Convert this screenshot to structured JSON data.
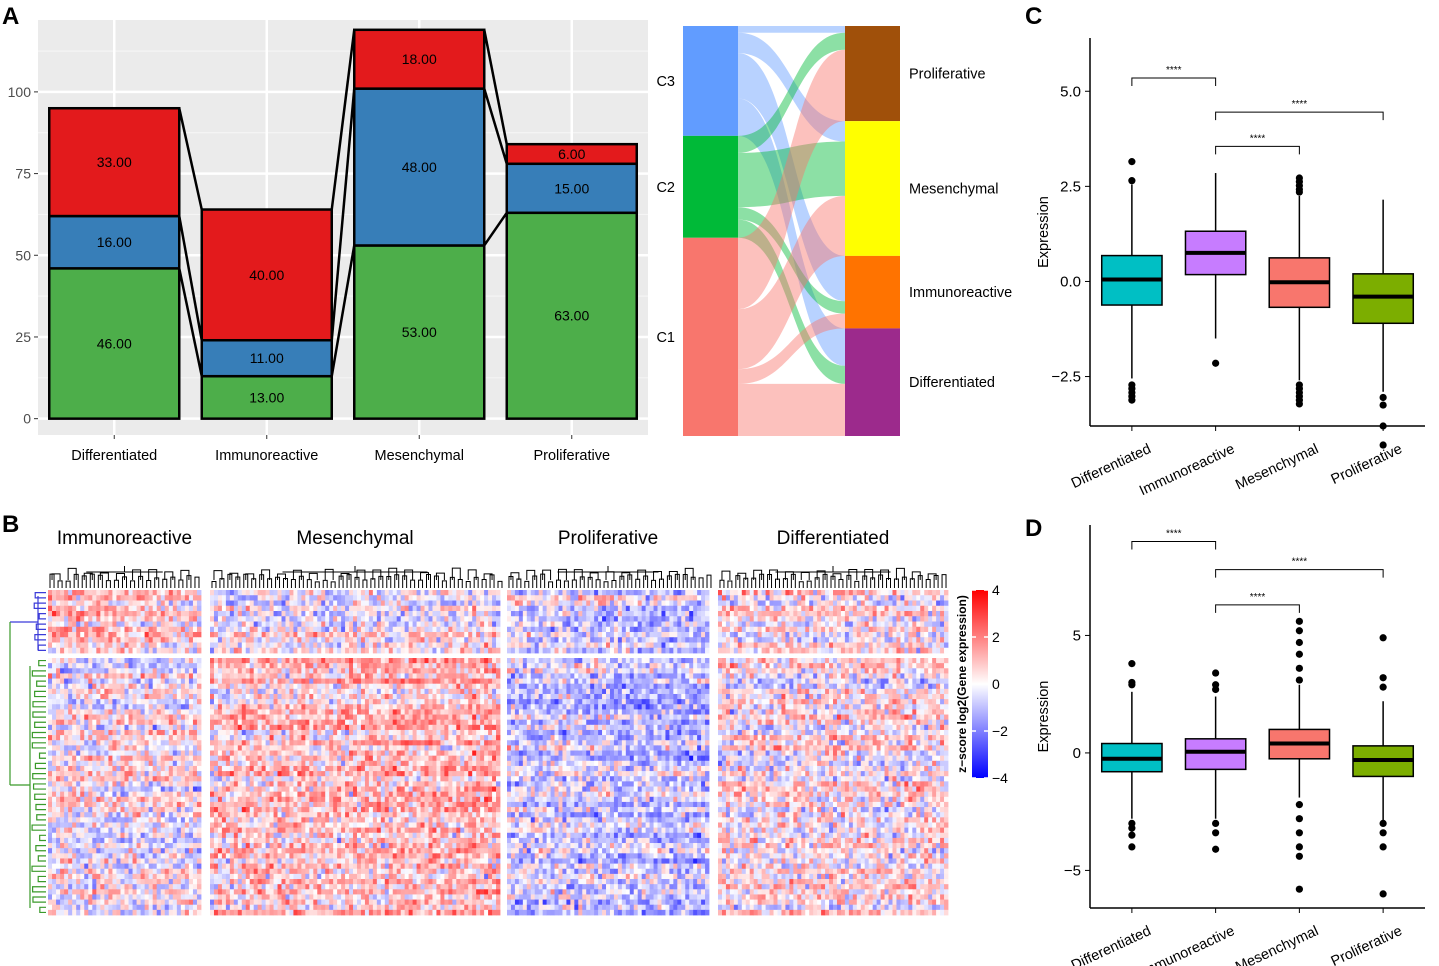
{
  "panels": {
    "a": "A",
    "b": "B",
    "c": "C",
    "d": "D"
  },
  "colors": {
    "green": "#4dae4a",
    "blue": "#377eb8",
    "red": "#e31a1c",
    "grid_bg": "#ebebeb",
    "sankey_c3": "#619cff",
    "sankey_c2": "#00ba38",
    "sankey_c1": "#f8766d",
    "sub_proliferative": "#a0500a",
    "sub_mesenchymal": "#ffff00",
    "sub_immunoreactive": "#ff7300",
    "sub_differentiated": "#9c2a8c",
    "box_differentiated": "#00bfc4",
    "box_immunoreactive": "#c77cff",
    "box_mesenchymal": "#f8766d",
    "box_proliferative": "#7cae00",
    "heat_red": "#ff0000",
    "heat_blue": "#0000ff"
  },
  "chart_data": [
    {
      "id": "A-bar",
      "type": "bar",
      "stacked": true,
      "categories": [
        "Differentiated",
        "Immunoreactive",
        "Mesenchymal",
        "Proliferative"
      ],
      "series": [
        {
          "name": "C1",
          "color": "#4dae4a",
          "values": [
            46,
            13,
            53,
            63
          ],
          "labels": [
            "46.00",
            "13.00",
            "53.00",
            "63.00"
          ]
        },
        {
          "name": "C2",
          "color": "#377eb8",
          "values": [
            16,
            11,
            48,
            15
          ],
          "labels": [
            "16.00",
            "11.00",
            "48.00",
            "15.00"
          ]
        },
        {
          "name": "C3",
          "color": "#e31a1c",
          "values": [
            33,
            40,
            18,
            6
          ],
          "labels": [
            "33.00",
            "40.00",
            "18.00",
            "6.00"
          ]
        }
      ],
      "yticks": [
        0,
        25,
        50,
        75,
        100
      ],
      "ytick_labels": [
        "0",
        "25",
        "50",
        "75",
        "100"
      ],
      "ylim": [
        -5,
        122
      ]
    },
    {
      "id": "A-sankey",
      "type": "sankey",
      "left_nodes": [
        {
          "name": "C3",
          "label": "C3",
          "value": 97
        },
        {
          "name": "C2",
          "label": "C2",
          "value": 90
        },
        {
          "name": "C1",
          "label": "C1",
          "value": 175
        }
      ],
      "right_nodes": [
        {
          "name": "Proliferative",
          "label": "Proliferative",
          "value": 84
        },
        {
          "name": "Mesenchymal",
          "label": "Mesenchymal",
          "value": 119
        },
        {
          "name": "Immunoreactive",
          "label": "Immunoreactive",
          "value": 64
        },
        {
          "name": "Differentiated",
          "label": "Differentiated",
          "value": 95
        }
      ],
      "flows": [
        {
          "from": "C3",
          "to": "Proliferative",
          "value": 6
        },
        {
          "from": "C3",
          "to": "Mesenchymal",
          "value": 18
        },
        {
          "from": "C3",
          "to": "Immunoreactive",
          "value": 40
        },
        {
          "from": "C3",
          "to": "Differentiated",
          "value": 33
        },
        {
          "from": "C2",
          "to": "Proliferative",
          "value": 15
        },
        {
          "from": "C2",
          "to": "Mesenchymal",
          "value": 48
        },
        {
          "from": "C2",
          "to": "Immunoreactive",
          "value": 11
        },
        {
          "from": "C2",
          "to": "Differentiated",
          "value": 16
        },
        {
          "from": "C1",
          "to": "Proliferative",
          "value": 63
        },
        {
          "from": "C1",
          "to": "Mesenchymal",
          "value": 53
        },
        {
          "from": "C1",
          "to": "Immunoreactive",
          "value": 13
        },
        {
          "from": "C1",
          "to": "Differentiated",
          "value": 46
        }
      ]
    },
    {
      "id": "C-box",
      "type": "box",
      "categories": [
        "Differentiated",
        "Immunoreactive",
        "Mesenchymal",
        "Proliferative"
      ],
      "ylabel": "Expression",
      "ylim": [
        -3.8,
        6.4
      ],
      "yticks": [
        -2.5,
        0,
        2.5,
        5
      ],
      "ytick_labels": [
        "−2.5",
        "0.0",
        "2.5",
        "5.0"
      ],
      "boxes": [
        {
          "name": "Differentiated",
          "q1": -0.62,
          "median": 0.05,
          "q3": 0.68,
          "wlo": -2.55,
          "whi": 2.55,
          "outliers": [
            3.15,
            2.65,
            -2.72,
            -2.82,
            -2.92,
            -3.02,
            -3.12
          ]
        },
        {
          "name": "Immunoreactive",
          "q1": 0.18,
          "median": 0.75,
          "q3": 1.32,
          "wlo": -1.5,
          "whi": 2.85,
          "outliers": [
            -2.15
          ]
        },
        {
          "name": "Mesenchymal",
          "q1": -0.68,
          "median": -0.02,
          "q3": 0.62,
          "wlo": -2.6,
          "whi": 2.25,
          "outliers": [
            2.72,
            2.62,
            2.52,
            2.42,
            2.35,
            -2.72,
            -2.82,
            -2.92,
            -3.02,
            -3.12,
            -3.22
          ]
        },
        {
          "name": "Proliferative",
          "q1": -1.1,
          "median": -0.4,
          "q3": 0.2,
          "wlo": -2.9,
          "whi": 2.15,
          "outliers": [
            -3.05,
            -3.25,
            -3.8,
            -4.3
          ]
        }
      ],
      "comparisons": [
        {
          "from": "Differentiated",
          "to": "Immunoreactive",
          "y": 5.35,
          "label": "****"
        },
        {
          "from": "Immunoreactive",
          "to": "Proliferative",
          "y": 4.45,
          "label": "****"
        },
        {
          "from": "Immunoreactive",
          "to": "Mesenchymal",
          "y": 3.55,
          "label": "****"
        }
      ]
    },
    {
      "id": "D-box",
      "type": "box",
      "categories": [
        "Differentiated",
        "Immunoreactive",
        "Mesenchymal",
        "Proliferative"
      ],
      "ylabel": "Expression",
      "ylim": [
        -6.6,
        9.7
      ],
      "yticks": [
        -5,
        0,
        5
      ],
      "ytick_labels": [
        "−5",
        "0",
        "5"
      ],
      "boxes": [
        {
          "name": "Differentiated",
          "q1": -0.8,
          "median": -0.25,
          "q3": 0.4,
          "wlo": -2.8,
          "whi": 2.6,
          "outliers": [
            3.8,
            3.0,
            2.9,
            -3.0,
            -3.2,
            -3.5,
            -4.0
          ]
        },
        {
          "name": "Immunoreactive",
          "q1": -0.7,
          "median": 0.05,
          "q3": 0.6,
          "wlo": -2.8,
          "whi": 2.4,
          "outliers": [
            3.4,
            2.9,
            2.7,
            -3.0,
            -3.4,
            -4.1
          ]
        },
        {
          "name": "Mesenchymal",
          "q1": -0.25,
          "median": 0.4,
          "q3": 1.0,
          "wlo": -1.9,
          "whi": 2.9,
          "outliers": [
            5.6,
            5.2,
            4.7,
            4.2,
            3.6,
            3.1,
            -2.2,
            -2.8,
            -3.4,
            -4.0,
            -4.4,
            -5.8
          ]
        },
        {
          "name": "Proliferative",
          "q1": -1.0,
          "median": -0.3,
          "q3": 0.3,
          "wlo": -2.9,
          "whi": 2.2,
          "outliers": [
            4.9,
            3.2,
            2.8,
            -3.0,
            -3.4,
            -4.0,
            -6.0
          ]
        }
      ],
      "comparisons": [
        {
          "from": "Differentiated",
          "to": "Immunoreactive",
          "y": 9.0,
          "label": "****"
        },
        {
          "from": "Immunoreactive",
          "to": "Proliferative",
          "y": 7.8,
          "label": "****"
        },
        {
          "from": "Immunoreactive",
          "to": "Mesenchymal",
          "y": 6.3,
          "label": "****"
        }
      ]
    },
    {
      "id": "B-heatmap",
      "type": "heatmap",
      "groups": [
        "Immunoreactive",
        "Mesenchymal",
        "Proliferative",
        "Differentiated"
      ],
      "legend_title": "z−score log2(Gene expression)",
      "legend_ticks": [
        4,
        2,
        0,
        -2,
        -4
      ],
      "legend_tick_labels": [
        "4",
        "2",
        "0",
        "−2",
        "−4"
      ],
      "value_range": [
        -4,
        4
      ]
    }
  ]
}
